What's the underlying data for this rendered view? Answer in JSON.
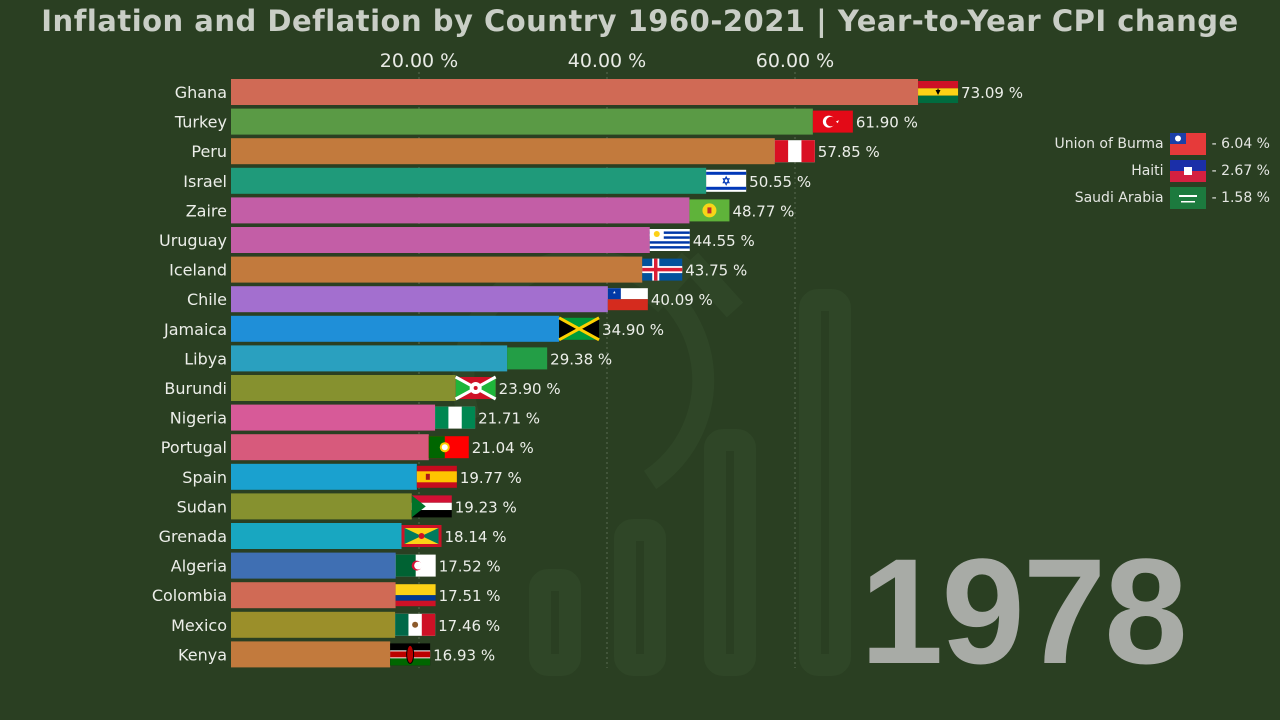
{
  "title": "Inflation and Deflation by Country 1960-2021 | Year-to-Year CPI change",
  "year": "1978",
  "chart_data": {
    "type": "bar",
    "orientation": "horizontal",
    "title": "Inflation and Deflation by Country 1960-2021 | Year-to-Year CPI change",
    "x_ticks": [
      "20.00 %",
      "40.00 %",
      "60.00 %"
    ],
    "x_tick_values": [
      20,
      40,
      60
    ],
    "xlim": [
      0,
      73.09
    ],
    "categories": [
      "Ghana",
      "Turkey",
      "Peru",
      "Israel",
      "Zaire",
      "Uruguay",
      "Iceland",
      "Chile",
      "Jamaica",
      "Libya",
      "Burundi",
      "Nigeria",
      "Portugal",
      "Spain",
      "Sudan",
      "Grenada",
      "Algeria",
      "Colombia",
      "Mexico",
      "Kenya"
    ],
    "values": [
      73.09,
      61.9,
      57.85,
      50.55,
      48.77,
      44.55,
      43.75,
      40.09,
      34.9,
      29.38,
      23.9,
      21.71,
      21.04,
      19.77,
      19.23,
      18.14,
      17.52,
      17.51,
      17.46,
      16.93
    ],
    "value_labels": [
      "73.09 %",
      "61.90 %",
      "57.85 %",
      "50.55 %",
      "48.77 %",
      "44.55 %",
      "43.75 %",
      "40.09 %",
      "34.90 %",
      "29.38 %",
      "23.90 %",
      "21.71 %",
      "21.04 %",
      "19.77 %",
      "19.23 %",
      "18.14 %",
      "17.52 %",
      "17.51 %",
      "17.46 %",
      "16.93 %"
    ],
    "bar_colors": [
      "#d06a55",
      "#5a9a45",
      "#c27a3d",
      "#1f9a7a",
      "#c35ea6",
      "#c35ea6",
      "#c27a3d",
      "#a36fcf",
      "#1f8fd8",
      "#2aa0bf",
      "#86912f",
      "#d75a98",
      "#d75a7c",
      "#1aa1cf",
      "#86912f",
      "#18a7c1",
      "#3f6fb3",
      "#d06a55",
      "#9b8f2a",
      "#c27a3d"
    ],
    "flags": [
      "ghana-flag",
      "turkey-flag",
      "peru-flag",
      "israel-flag",
      "zaire-flag",
      "uruguay-flag",
      "iceland-flag",
      "chile-flag",
      "jamaica-flag",
      "libya-flag",
      "burundi-flag",
      "nigeria-flag",
      "portugal-flag",
      "spain-flag",
      "sudan-flag",
      "grenada-flag",
      "algeria-flag",
      "colombia-flag",
      "mexico-flag",
      "kenya-flag"
    ],
    "deflation": [
      {
        "name": "Union of Burma",
        "value": -6.04,
        "label": "- 6.04 %",
        "flag": "burma-flag"
      },
      {
        "name": "Haiti",
        "value": -2.67,
        "label": "- 2.67 %",
        "flag": "haiti-flag"
      },
      {
        "name": "Saudi Arabia",
        "value": -1.58,
        "label": "- 1.58 %",
        "flag": "saudi-arabia-flag"
      }
    ]
  }
}
